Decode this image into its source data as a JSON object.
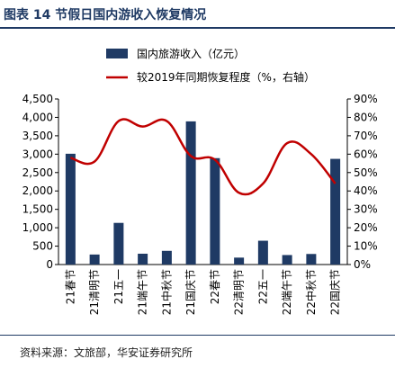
{
  "header": {
    "title": "图表 14  节假日国内游收入恢复情况"
  },
  "footer": {
    "source": "资料来源：文旅部，华安证券研究所"
  },
  "chart_data": {
    "type": "bar+line",
    "categories": [
      "21春节",
      "21清明节",
      "21五一",
      "21端午节",
      "21中秋节",
      "21国庆节",
      "22春节",
      "22清明节",
      "22五一",
      "22端午节",
      "22中秋节",
      "22国庆节"
    ],
    "series": [
      {
        "name": "国内旅游收入（亿元）",
        "type": "bar",
        "axis": "left",
        "color": "#1f3a64",
        "values": [
          3011,
          272,
          1132,
          294,
          372,
          3891,
          2892,
          188,
          647,
          258,
          287,
          2872
        ]
      },
      {
        "name": "较2019年同期恢复程度（%，右轴）",
        "type": "line",
        "axis": "right",
        "color": "#c00000",
        "values": [
          58,
          56,
          78,
          75,
          78,
          59,
          57,
          39,
          44,
          66,
          60,
          44
        ]
      }
    ],
    "y_left": {
      "min": 0,
      "max": 4500,
      "ticks": [
        "0",
        "500",
        "1,000",
        "1,500",
        "2,000",
        "2,500",
        "3,000",
        "3,500",
        "4,000",
        "4,500"
      ]
    },
    "y_right": {
      "min": 0,
      "max": 90,
      "ticks": [
        "0%",
        "10%",
        "20%",
        "30%",
        "40%",
        "50%",
        "60%",
        "70%",
        "80%",
        "90%"
      ]
    },
    "legend_position": "top",
    "grid": false
  }
}
